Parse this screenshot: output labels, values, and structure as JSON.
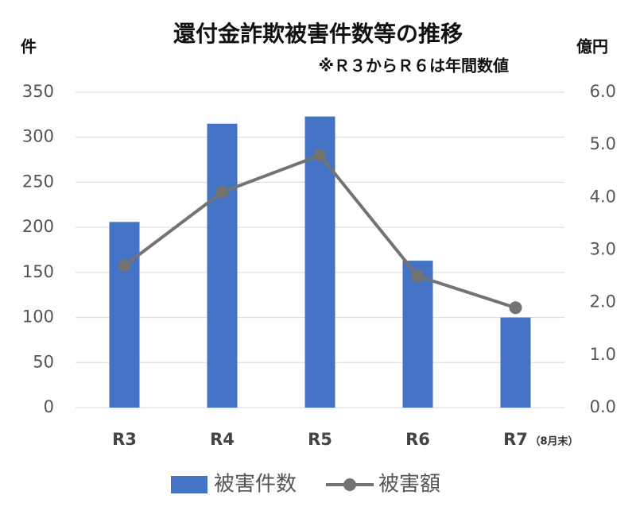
{
  "chart_data": {
    "type": "bar",
    "title": "還付金詐欺被害件数等の推移",
    "subtitle": "※Ｒ３からＲ６は年間数値",
    "y_label": "件",
    "y2_label": "億円",
    "categories": [
      "R3",
      "R4",
      "R5",
      "R6",
      "R7"
    ],
    "category_note": "（8月末）",
    "series": [
      {
        "name": "被害件数",
        "color": "#4472c4",
        "values": [
          206,
          315,
          323,
          163,
          100
        ]
      },
      {
        "name": "被害額",
        "color": "#737373",
        "type": "line",
        "axis": "y2",
        "values": [
          2.7,
          4.1,
          4.8,
          2.5,
          1.9
        ]
      }
    ],
    "ylim": [
      0,
      350
    ],
    "yticks": [
      0,
      50,
      100,
      150,
      200,
      250,
      300,
      350
    ],
    "y2lim": [
      0,
      6
    ],
    "y2ticks": [
      {
        "value": 0,
        "label": "0.0"
      },
      {
        "value": 1,
        "label": "1.0"
      },
      {
        "value": 2,
        "label": "2.0"
      },
      {
        "value": 3,
        "label": "3.0"
      },
      {
        "value": 4,
        "label": "4.0"
      },
      {
        "value": 5,
        "label": "5.0"
      },
      {
        "value": 6,
        "label": "6.0"
      }
    ],
    "grid": true,
    "legend": "bottom"
  }
}
